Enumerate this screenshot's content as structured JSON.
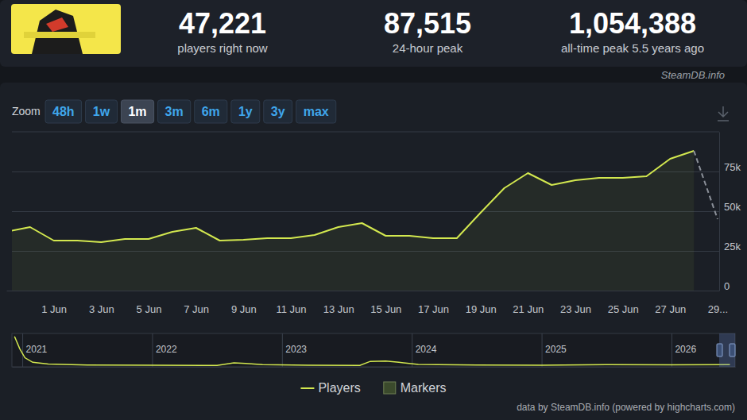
{
  "header": {
    "stats": [
      {
        "value": "47,221",
        "label": "players right now"
      },
      {
        "value": "87,515",
        "label": "24-hour peak"
      },
      {
        "value": "1,054,388",
        "label": "all-time peak 5.5 years ago"
      }
    ],
    "source": "SteamDB.info"
  },
  "zoom": {
    "label": "Zoom",
    "buttons": [
      "48h",
      "1w",
      "1m",
      "3m",
      "6m",
      "1y",
      "3y",
      "max"
    ],
    "active": "1m"
  },
  "chart_data": [
    {
      "type": "area",
      "categories": [
        null,
        null,
        "1 Jun",
        null,
        "3 Jun",
        null,
        "5 Jun",
        null,
        "7 Jun",
        null,
        "9 Jun",
        null,
        "11 Jun",
        null,
        "13 Jun",
        null,
        "15 Jun",
        null,
        "17 Jun",
        null,
        "19 Jun",
        null,
        "21 Jun",
        null,
        "23 Jun",
        null,
        "25 Jun",
        null,
        "27 Jun",
        null,
        "29..."
      ],
      "series": [
        {
          "name": "Players",
          "color": "#d3e84f",
          "values": [
            37000,
            40000,
            31500,
            31500,
            30500,
            32500,
            32500,
            37000,
            39500,
            31500,
            32000,
            33000,
            33000,
            35000,
            40000,
            42500,
            34500,
            34500,
            33000,
            33000,
            49000,
            64500,
            74000,
            66500,
            69500,
            71000,
            71000,
            72000,
            83000,
            88000,
            null
          ]
        },
        {
          "type": "line",
          "color": "#8b9099",
          "line_style": "dashed",
          "values": [
            null,
            null,
            null,
            null,
            null,
            null,
            null,
            null,
            null,
            null,
            null,
            null,
            null,
            null,
            null,
            null,
            null,
            null,
            null,
            null,
            null,
            null,
            null,
            null,
            null,
            null,
            null,
            null,
            null,
            88000,
            45000
          ]
        },
        {
          "name": "Markers",
          "type": "flags",
          "color": "#3b4a2c",
          "values": [
            null,
            null,
            null,
            null,
            null,
            null,
            null,
            null,
            null,
            null,
            null,
            null,
            null,
            null,
            null,
            null,
            null,
            null,
            null,
            null,
            null,
            null,
            null,
            null,
            null,
            null,
            null,
            null,
            null,
            null,
            null
          ]
        }
      ],
      "ylim": [
        0,
        100000
      ],
      "yticks": [
        0,
        {
          "value": 25000,
          "label": "25k"
        },
        {
          "value": 50000,
          "label": "50k"
        },
        {
          "value": 75000,
          "label": "75k"
        }
      ],
      "grid": true,
      "legend": "bottom"
    },
    {
      "type": "line",
      "x": [
        2020.94,
        2020.98,
        2021.02,
        2021.08,
        2021.2,
        2021.5,
        2022.0,
        2022.5,
        2022.63,
        2022.72,
        2022.85,
        2023.2,
        2023.6,
        2023.68,
        2023.8,
        2023.9,
        2024.05,
        2024.5,
        2025.0,
        2025.5,
        2026.0,
        2026.45
      ],
      "values": [
        1000000,
        600000,
        300000,
        150000,
        90000,
        60000,
        50000,
        45000,
        130000,
        110000,
        70000,
        50000,
        45000,
        180000,
        190000,
        150000,
        80000,
        60000,
        55000,
        70000,
        65000,
        70000
      ],
      "color": "#d3e84f",
      "xlim": [
        2020.92,
        2026.49
      ],
      "xticks": [
        2021,
        2022,
        2023,
        2024,
        2025,
        2026
      ],
      "ylim": [
        0,
        1100000
      ],
      "grid": true,
      "tick_labels": "x"
    }
  ],
  "credit": "data by SteamDB.info (powered by highcharts.com)"
}
